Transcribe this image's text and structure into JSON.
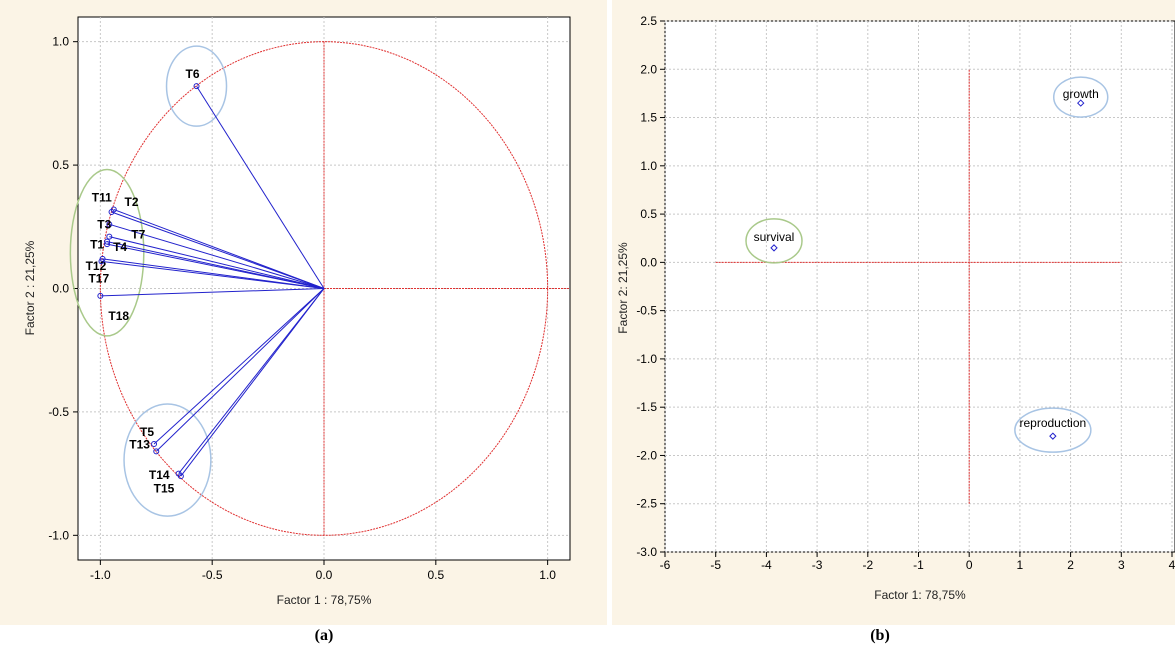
{
  "captions": {
    "a": "(a)",
    "b": "(b)"
  },
  "chart_data": [
    {
      "type": "scatter",
      "panel": "a",
      "xlabel": "Factor 1 : 78,75%",
      "ylabel": "Factor 2 :  21,25%",
      "xlim": [
        -1.1,
        1.1
      ],
      "ylim": [
        -1.1,
        1.1
      ],
      "xticks": [
        -1.0,
        -0.5,
        0.0,
        0.5,
        1.0
      ],
      "yticks": [
        -1.0,
        -0.5,
        0.0,
        0.5,
        1.0
      ],
      "xtick_labels": [
        "-1.0",
        "-0.5",
        "0.0",
        "0.5",
        "1.0"
      ],
      "ytick_labels": [
        "-1.0",
        "-0.5",
        "0.0",
        "0.5",
        "1.0"
      ],
      "grid": true,
      "unit_circle": true,
      "points": [
        {
          "name": "T6",
          "x": -0.57,
          "y": 0.82
        },
        {
          "name": "T11",
          "x": -0.94,
          "y": 0.32
        },
        {
          "name": "T2",
          "x": -0.95,
          "y": 0.31
        },
        {
          "name": "T3",
          "x": -0.96,
          "y": 0.26
        },
        {
          "name": "T7",
          "x": -0.96,
          "y": 0.21
        },
        {
          "name": "T1",
          "x": -0.97,
          "y": 0.19
        },
        {
          "name": "T4",
          "x": -0.97,
          "y": 0.18
        },
        {
          "name": "T12",
          "x": -0.99,
          "y": 0.12
        },
        {
          "name": "T17",
          "x": -0.995,
          "y": 0.11
        },
        {
          "name": "T18",
          "x": -1.0,
          "y": -0.03
        },
        {
          "name": "T5",
          "x": -0.76,
          "y": -0.63
        },
        {
          "name": "T13",
          "x": -0.75,
          "y": -0.66
        },
        {
          "name": "T14",
          "x": -0.64,
          "y": -0.76
        },
        {
          "name": "T15",
          "x": -0.65,
          "y": -0.75
        }
      ],
      "group_ellipses": [
        {
          "color": "#a8c4e4",
          "members": [
            "T6"
          ]
        },
        {
          "color": "#a9c98a",
          "members": [
            "T11",
            "T2",
            "T3",
            "T7",
            "T1",
            "T4",
            "T12",
            "T17",
            "T18"
          ]
        },
        {
          "color": "#a8c4e4",
          "members": [
            "T5",
            "T13",
            "T14",
            "T15"
          ]
        }
      ],
      "colors": {
        "vector": "#2222cc",
        "circle": "#e03030",
        "axes": "#e03030",
        "grid": "#c8c8c8"
      }
    },
    {
      "type": "scatter",
      "panel": "b",
      "xlabel": "Factor 1: 78,75%",
      "ylabel": "Factor 2:  21,25%",
      "xlim": [
        -6,
        4
      ],
      "ylim": [
        -3.0,
        2.5
      ],
      "xticks": [
        -6,
        -5,
        -4,
        -3,
        -2,
        -1,
        0,
        1,
        2,
        3,
        4
      ],
      "yticks": [
        -3.0,
        -2.5,
        -2.0,
        -1.5,
        -1.0,
        -0.5,
        0.0,
        0.5,
        1.0,
        1.5,
        2.0,
        2.5
      ],
      "xtick_labels": [
        "-6",
        "-5",
        "-4",
        "-3",
        "-2",
        "-1",
        "0",
        "1",
        "2",
        "3",
        "4"
      ],
      "ytick_labels": [
        "-3.0",
        "-2.5",
        "-2.0",
        "-1.5",
        "-1.0",
        "-0.5",
        "0.0",
        "0.5",
        "1.0",
        "1.5",
        "2.0",
        "2.5"
      ],
      "grid": true,
      "points": [
        {
          "name": "growth",
          "x": 2.2,
          "y": 1.65
        },
        {
          "name": "survival",
          "x": -3.85,
          "y": 0.15
        },
        {
          "name": "reproduction",
          "x": 1.65,
          "y": -1.8
        }
      ],
      "reference_lines": {
        "hline": {
          "y": 0,
          "x0": -5,
          "x1": 3
        },
        "vline": {
          "x": 0,
          "y0": -2.5,
          "y1": 2.0
        }
      },
      "colors": {
        "point": "#2222cc",
        "axes": "#e03030",
        "grid": "#c8c8c8",
        "ellipse_blue": "#a8c4e4",
        "ellipse_green": "#a9c98a"
      }
    }
  ]
}
